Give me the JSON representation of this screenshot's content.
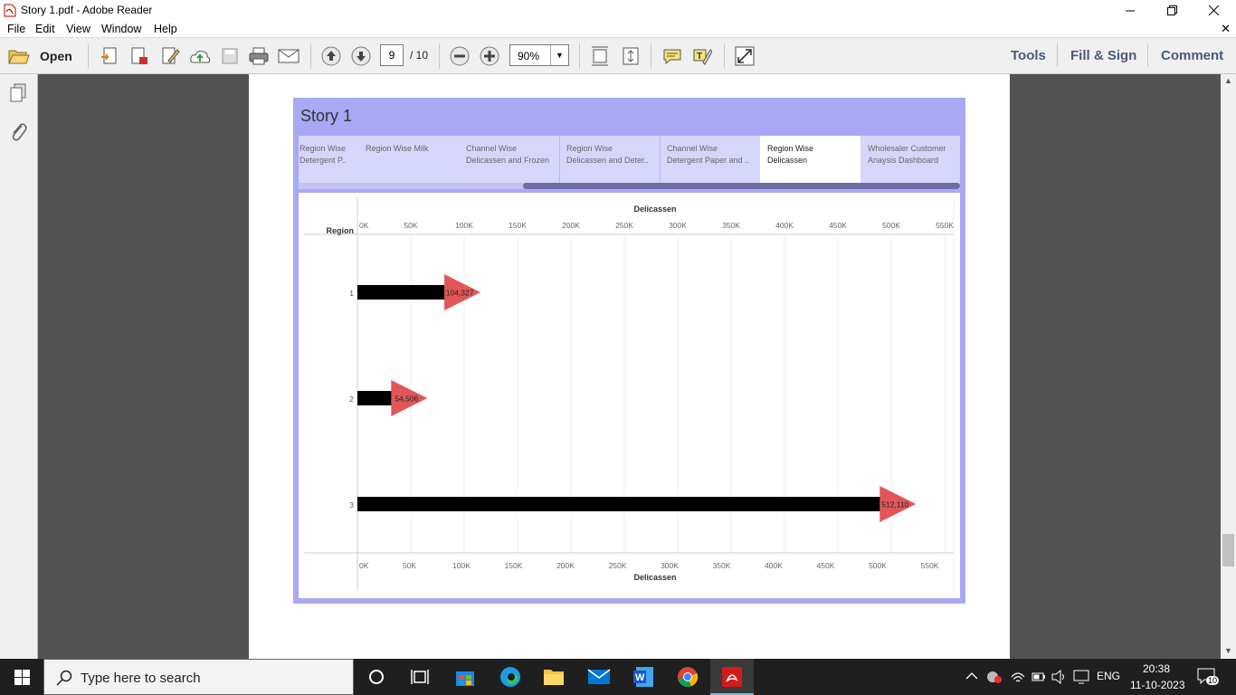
{
  "window": {
    "title": "Story 1.pdf - Adobe Reader"
  },
  "menu": [
    "File",
    "Edit",
    "View",
    "Window",
    "Help"
  ],
  "toolbar": {
    "open_label": "Open",
    "page_current": "9",
    "page_total": "/ 10",
    "zoom": "90%",
    "tools_label": "Tools",
    "fill_sign_label": "Fill & Sign",
    "comment_label": "Comment"
  },
  "story": {
    "title": "Story 1",
    "tabs": [
      {
        "l1": "Region Wise",
        "l2": "Detergent P..",
        "active": false
      },
      {
        "l1": "Region Wise Milk",
        "l2": "",
        "active": false
      },
      {
        "l1": "Channel Wise",
        "l2": "Delicassen and Frozen",
        "active": false
      },
      {
        "l1": "Region Wise",
        "l2": "Delicassen and Deter..",
        "active": false
      },
      {
        "l1": "Channel Wise",
        "l2": "Detergent Paper and ..",
        "active": false
      },
      {
        "l1": "Region Wise",
        "l2": "Delicassen",
        "active": true
      },
      {
        "l1": "Wholesaler Customer",
        "l2": "Anaysis Dashboard",
        "active": false
      }
    ]
  },
  "chart_data": {
    "type": "bar",
    "title": "",
    "row_header": "Region",
    "xlabel": "Delicassen",
    "xlabel_bottom": "Delicassen",
    "categories": [
      "1",
      "2",
      "3"
    ],
    "values": [
      104327,
      54506,
      512110
    ],
    "data_labels": [
      "104,327",
      "54,506",
      "512,110"
    ],
    "xlim": [
      0,
      560000
    ],
    "ticks_top": [
      "0K",
      "50K",
      "100K",
      "150K",
      "200K",
      "250K",
      "300K",
      "350K",
      "400K",
      "450K",
      "500K",
      "550K"
    ],
    "ticks_bottom": [
      "0K",
      "50K",
      "100K",
      "150K",
      "200K",
      "250K",
      "300K",
      "350K",
      "400K",
      "450K",
      "500K",
      "550K"
    ],
    "bar_color": "#000000",
    "marker_color": "#e15759",
    "marker": "triangle-right",
    "grid": true
  },
  "taskbar": {
    "search_placeholder": "Type here to search",
    "lang": "ENG",
    "time": "20:38",
    "date": "11-10-2023",
    "notifications": "10"
  },
  "icons": {
    "start": "windows-start-icon",
    "search": "search-icon",
    "apps": [
      "cortana-icon",
      "task-view-icon",
      "store-icon",
      "edge-icon",
      "file-explorer-icon",
      "mail-icon",
      "word-icon",
      "chrome-icon",
      "acrobat-icon"
    ]
  }
}
